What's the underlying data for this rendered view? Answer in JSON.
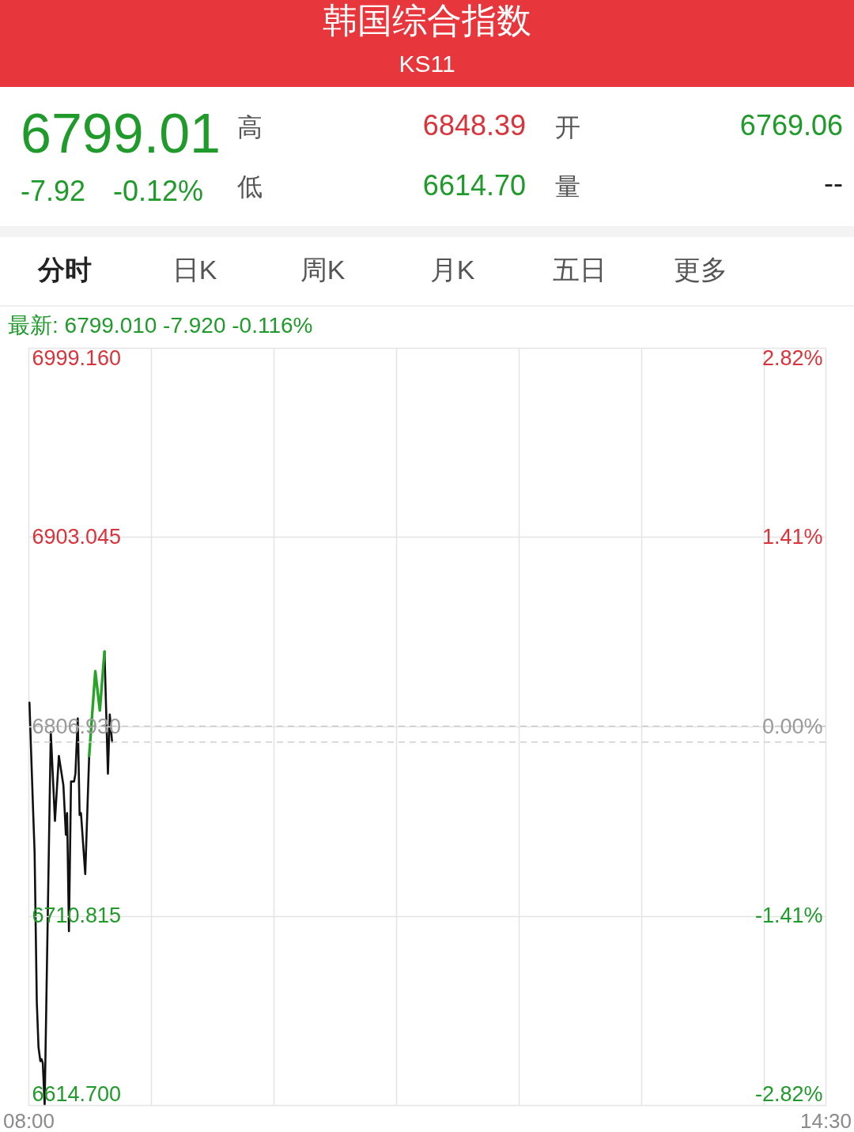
{
  "chart_data": {
    "type": "line",
    "title": "韩国综合指数",
    "subtitle": "KS11",
    "annotations": [
      "6799.01",
      "-7.92",
      "-0.12%",
      "高",
      "6848.39",
      "开",
      "6769.06",
      "低",
      "6614.70",
      "量",
      "--",
      "分时",
      "日K",
      "周K",
      "月K",
      "五日",
      "更多",
      "最新: 6799.010 -7.920 -0.116%"
    ],
    "xlim": [
      8,
      14.5
    ],
    "xticks": [
      {
        "value": 8,
        "label": "08:00"
      },
      {
        "value": 9,
        "label": null
      },
      {
        "value": 10,
        "label": null
      },
      {
        "value": 11,
        "label": null
      },
      {
        "value": 12,
        "label": null
      },
      {
        "value": 13,
        "label": null
      },
      {
        "value": 14,
        "label": null
      },
      {
        "value": 14.5,
        "label": "14:30"
      }
    ],
    "ylim": [
      6614.7,
      6999.16
    ],
    "yticks": [
      {
        "value": 6614.7,
        "label": "6614.700"
      },
      6710.815,
      {
        "value": 6806.93,
        "label": "6806.930"
      },
      6903.045,
      {
        "value": 6999.16,
        "label": "6999.160"
      }
    ],
    "y2lim": [
      -2.82,
      2.82
    ],
    "y2ticks": [
      {
        "value": -2.82,
        "label": "-2.82%"
      },
      {
        "value": -1.41,
        "label": "-1.41%"
      },
      {
        "value": 0,
        "label": "0.00%"
      },
      {
        "value": 1.41,
        "label": "1.41%"
      },
      {
        "value": 2.82,
        "label": "2.82%"
      }
    ],
    "grid": true,
    "ref_lines": [
      {
        "axis": "y2",
        "value": 0,
        "color": "#9b9b9b",
        "line_style": "dashed"
      },
      {
        "axis": "y",
        "value": 6799.01,
        "color": "#cfcfcf",
        "line_style": "dashed"
      }
    ],
    "series": [
      {
        "color": "#111111",
        "x": [
          8.008,
          8.038,
          8.05,
          8.068,
          8.082,
          8.097,
          8.107,
          8.117,
          8.132,
          8.182,
          8.216,
          8.248,
          8.285,
          8.305,
          8.315,
          8.33,
          8.347,
          8.372,
          8.383,
          8.402,
          8.417,
          8.428,
          8.463,
          8.495,
          8.545,
          8.582,
          8.62,
          8.648,
          8.663,
          8.682
        ],
        "values": [
          6819,
          6764,
          6743,
          6667,
          6644,
          6637,
          6638,
          6636,
          6614.7,
          6804,
          6759,
          6792,
          6777,
          6752,
          6763,
          6703,
          6779,
          6779,
          6783,
          6811,
          6762,
          6763,
          6732,
          6792,
          null,
          null,
          6845,
          6783,
          6813,
          6799
        ]
      },
      {
        "color": "#27a327",
        "x": [
          8.495,
          8.545,
          8.582,
          8.62
        ],
        "values": [
          6792,
          6835,
          6815,
          6845
        ]
      }
    ]
  }
}
